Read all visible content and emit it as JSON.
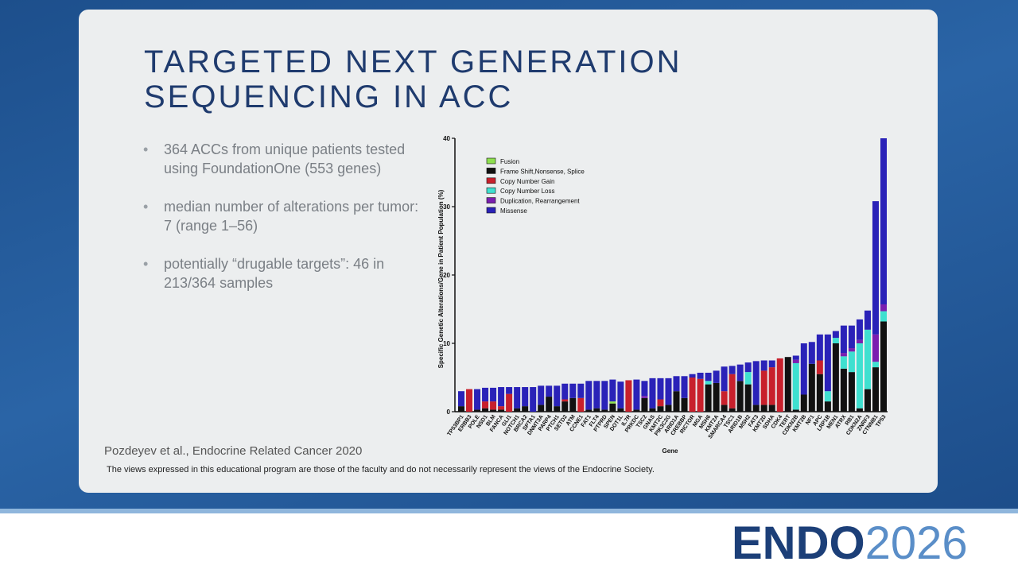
{
  "slide": {
    "title_lines": [
      "TARGETED NEXT GENERATION",
      "SEQUENCING IN ACC"
    ],
    "bullets": [
      "364 ACCs from unique patients tested using FoundationOne (553 genes)",
      "median number of alterations per tumor: 7 (range 1–56)",
      "potentially “drugable targets”: 46 in 213/364 samples"
    ],
    "citation": "Pozdeyev et al., Endocrine Related Cancer 2020",
    "disclaimer": "The views expressed in this educational program are those of the faculty and do not necessarily represent the views of the Endocrine Society.",
    "logo": {
      "main": "ENDO",
      "year": "2026"
    }
  },
  "chart_data": {
    "type": "stacked-bar",
    "xlabel": "Gene",
    "ylabel": "Specific Genetic Alterations/Gene in Patient Population (%)",
    "categories": [
      "TP53BP1",
      "ERBB3",
      "POLE",
      "NSD1",
      "BLM",
      "FANCA",
      "GLI1",
      "NOTCH1",
      "BRCA2",
      "SPTA1",
      "DNMT3A",
      "PARP4",
      "PTCH1",
      "SETD2",
      "ATM",
      "CCNE1",
      "FAT1",
      "FLT4",
      "PTPRD",
      "SPEN",
      "DOT1L",
      "IL7R",
      "PRKDC",
      "TSC2",
      "GNAS",
      "KMT2C",
      "PIK3C2G",
      "ARID1A",
      "CREBBP",
      "RICTOR",
      "MGA",
      "MSH6",
      "KMT2A",
      "SMARCA4",
      "TSC1",
      "ARID1B",
      "MSH2",
      "FAT3",
      "KMT2D",
      "SDHA",
      "CDK4",
      "TERT",
      "CDKN2B",
      "KMT2B",
      "NF1",
      "APC",
      "LRP1B",
      "MEN1",
      "ATRX",
      "RB1",
      "CDKN2A",
      "ZNRF3",
      "CTNNB1",
      "TP53"
    ],
    "series": [
      {
        "name": "Fusion",
        "color": "#8ee04f",
        "values": [
          0,
          0,
          0,
          0,
          0,
          0,
          0,
          0,
          0,
          0,
          0,
          0,
          0,
          0,
          0,
          0,
          0,
          0,
          0,
          0.3,
          0,
          0,
          0,
          0,
          0,
          0,
          0,
          0,
          0,
          0,
          0,
          0,
          0,
          0,
          0,
          0,
          0,
          0,
          0,
          0,
          0,
          0,
          0,
          0,
          0,
          0,
          0,
          0,
          0,
          0,
          0,
          0,
          0,
          0
        ]
      },
      {
        "name": "Frame Shift,Nonsense, Splice",
        "color": "#111111",
        "values": [
          0.8,
          0,
          0.3,
          0.5,
          0.3,
          0.3,
          0,
          0.5,
          0.8,
          0,
          1.0,
          2.2,
          0.8,
          1.5,
          2.0,
          0,
          0.3,
          0.5,
          0.3,
          1.2,
          0.5,
          0,
          0.3,
          2.0,
          0.5,
          0.8,
          1.0,
          3.0,
          2.0,
          0,
          0,
          4.0,
          4.2,
          1.0,
          0.5,
          4.5,
          4.0,
          1.0,
          1.0,
          1.0,
          0,
          8.0,
          0.3,
          2.5,
          7.0,
          5.5,
          1.5,
          10.0,
          6.3,
          5.8,
          0.5,
          3.3,
          6.5,
          13.2
        ]
      },
      {
        "name": "Copy Number Gain",
        "color": "#c8202c",
        "values": [
          0,
          3.3,
          0,
          1.0,
          1.2,
          0.5,
          2.6,
          0,
          0,
          0,
          0,
          0,
          0,
          0.3,
          0,
          2.0,
          0,
          0,
          0,
          0,
          0,
          4.6,
          0,
          0,
          0,
          1.0,
          0,
          0,
          0,
          5.0,
          4.8,
          0,
          0,
          2.0,
          5.0,
          0,
          0,
          0,
          5.0,
          5.5,
          7.8,
          0,
          0,
          0,
          0,
          2.0,
          0,
          0,
          0,
          0,
          0,
          0,
          0,
          0
        ]
      },
      {
        "name": "Copy Number Loss",
        "color": "#3fe0d0",
        "values": [
          0,
          0,
          0,
          0,
          0,
          0,
          0,
          0,
          0,
          0,
          0,
          0,
          0,
          0,
          0,
          0,
          0,
          0,
          0,
          0,
          0,
          0,
          0,
          0,
          0,
          0,
          0,
          0,
          0,
          0,
          0,
          0.5,
          0,
          0,
          0,
          0,
          1.8,
          0,
          0,
          0,
          0,
          0,
          6.8,
          0,
          0,
          0,
          1.5,
          0.8,
          1.8,
          3.0,
          9.5,
          8.7,
          0.8,
          1.5
        ]
      },
      {
        "name": "Duplication, Rearrangement",
        "color": "#7a1fb0",
        "values": [
          0,
          0,
          0,
          0,
          0,
          0,
          0,
          0,
          0,
          0,
          0,
          0,
          0,
          0,
          0,
          0,
          0,
          0,
          0,
          0,
          0,
          0,
          0,
          0.3,
          0,
          0,
          0,
          0,
          0,
          0,
          0,
          0,
          0,
          0,
          0,
          0,
          0,
          0,
          0,
          0,
          0,
          0,
          0.5,
          0,
          0,
          0,
          0,
          0,
          0.5,
          0.5,
          0.5,
          0,
          4.0,
          1.0
        ]
      },
      {
        "name": "Missense",
        "color": "#2a22b8",
        "values": [
          2.2,
          0,
          3.0,
          2.0,
          2.0,
          2.8,
          1.0,
          3.1,
          2.8,
          3.6,
          2.8,
          1.6,
          3.0,
          2.3,
          2.1,
          2.1,
          4.2,
          4.0,
          4.2,
          3.2,
          3.9,
          0,
          4.4,
          2.2,
          4.4,
          3.1,
          3.9,
          2.2,
          3.2,
          0.5,
          0.9,
          1.2,
          1.8,
          3.6,
          1.2,
          2.4,
          1.4,
          6.4,
          1.5,
          1.0,
          0,
          0,
          0.6,
          7.5,
          3.2,
          3.8,
          8.3,
          1.0,
          4.0,
          3.3,
          3.0,
          2.8,
          19.5,
          24.3
        ]
      }
    ],
    "stack_order": [
      "Frame Shift,Nonsense, Splice",
      "Fusion",
      "Copy Number Gain",
      "Copy Number Loss",
      "Duplication, Rearrangement",
      "Missense"
    ],
    "ylim": [
      0,
      40
    ],
    "yticks": [
      0,
      10,
      20,
      30,
      40
    ],
    "legend": "upper left"
  }
}
